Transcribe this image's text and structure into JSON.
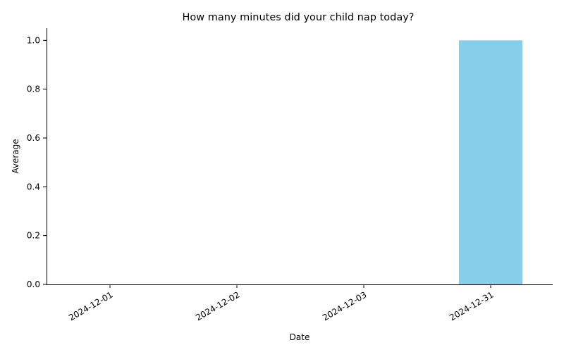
{
  "chart_data": {
    "type": "bar",
    "title": "How many minutes did your child nap today?",
    "xlabel": "Date",
    "ylabel": "Average",
    "categories": [
      "2024-12-01",
      "2024-12-02",
      "2024-12-03",
      "2024-12-31"
    ],
    "values": [
      0,
      0,
      0,
      1
    ],
    "ylim": [
      0,
      1.05
    ],
    "yticks": [
      "0.0",
      "0.2",
      "0.4",
      "0.6",
      "0.8",
      "1.0"
    ],
    "bar_color": "#87ceeb",
    "grid": false,
    "legend": false
  }
}
